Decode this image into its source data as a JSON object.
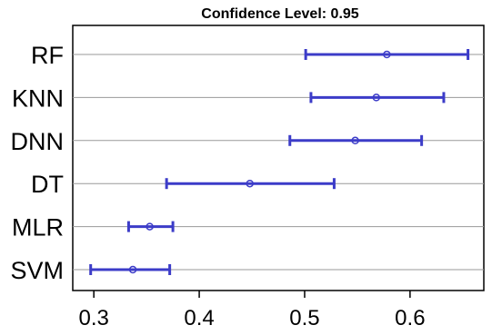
{
  "chart_data": {
    "type": "errorbar",
    "title": "Confidence Level: 0.95",
    "xlabel": "",
    "ylabel": "",
    "xlim": [
      0.28,
      0.67
    ],
    "xticks": [
      0.3,
      0.4,
      0.5,
      0.6
    ],
    "xtick_labels": [
      "0.3",
      "0.4",
      "0.5",
      "0.6"
    ],
    "categories": [
      "RF",
      "KNN",
      "DNN",
      "DT",
      "MLR",
      "SVM"
    ],
    "estimate": [
      0.578,
      0.568,
      0.548,
      0.448,
      0.353,
      0.337
    ],
    "lower": [
      0.501,
      0.506,
      0.486,
      0.369,
      0.333,
      0.297
    ],
    "upper": [
      0.655,
      0.632,
      0.611,
      0.528,
      0.375,
      0.372
    ],
    "grid": "horizontal",
    "color": "#3c3cc8"
  }
}
